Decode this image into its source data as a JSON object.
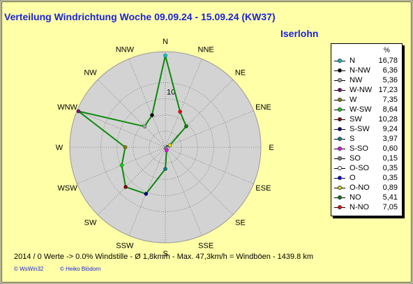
{
  "title": "Verteilung Windrichtung   Woche 09.09.24 - 15.09.24 (KW37)",
  "location": "Iserlohn",
  "footer": "2014 / 0 Werte  -> 0.0% Windstille   -   Ø 1,8km/h  -  Max. 47,3km/h = Windböen   -   1439.8 km",
  "copyright": [
    "© WsWin32",
    "© Heiko Blödorn"
  ],
  "chart_data": {
    "type": "radar",
    "title": "Verteilung Windrichtung   Woche 09.09.24 - 15.09.24 (KW37)",
    "unit": "%",
    "directions": [
      "N",
      "NNE",
      "NE",
      "ENE",
      "E",
      "ESE",
      "SE",
      "SSE",
      "S",
      "SSW",
      "SW",
      "WSW",
      "W",
      "WNW",
      "NW",
      "NNW"
    ],
    "ring_label": "10",
    "ring_value": 10,
    "rmax": 17.5,
    "series_color": "#0a8a0a",
    "background": "#ffffa8",
    "disc_color": "#d3d3d3",
    "values": {
      "N": 16.78,
      "NNE": 7.05,
      "NE": 5.41,
      "ENE": 0.89,
      "E": 0.35,
      "ESE": 0.35,
      "SE": 0.15,
      "SSE": 0.6,
      "S": 3.97,
      "SSW": 9.24,
      "SW": 10.28,
      "WSW": 8.64,
      "W": 7.35,
      "WNW": 17.23,
      "NW": 5.36,
      "NNW": 6.36
    },
    "legend": {
      "header": "%",
      "entries": [
        {
          "name": "N",
          "value": "16,78",
          "color": "#00c8c8"
        },
        {
          "name": "N-NW",
          "value": "6,36",
          "color": "#000000"
        },
        {
          "name": "NW",
          "value": "5,36",
          "color": "#a0a0a0"
        },
        {
          "name": "W-NW",
          "value": "17,23",
          "color": "#800080"
        },
        {
          "name": "W",
          "value": "7,35",
          "color": "#808000"
        },
        {
          "name": "W-SW",
          "value": "8,64",
          "color": "#00d800"
        },
        {
          "name": "SW",
          "value": "10,28",
          "color": "#800000"
        },
        {
          "name": "S-SW",
          "value": "9,24",
          "color": "#000080"
        },
        {
          "name": "S",
          "value": "3,97",
          "color": "#008080"
        },
        {
          "name": "S-SO",
          "value": "0,60",
          "color": "#ff00ff"
        },
        {
          "name": "SO",
          "value": "0,15",
          "color": "#808080"
        },
        {
          "name": "O-SO",
          "value": "0,35",
          "color": "#ffffff"
        },
        {
          "name": "O",
          "value": "0,35",
          "color": "#0000ff"
        },
        {
          "name": "O-NO",
          "value": "0,89",
          "color": "#e0e000"
        },
        {
          "name": "NO",
          "value": "5,41",
          "color": "#008000"
        },
        {
          "name": "N-NO",
          "value": "7,05",
          "color": "#ff0000"
        }
      ]
    }
  }
}
